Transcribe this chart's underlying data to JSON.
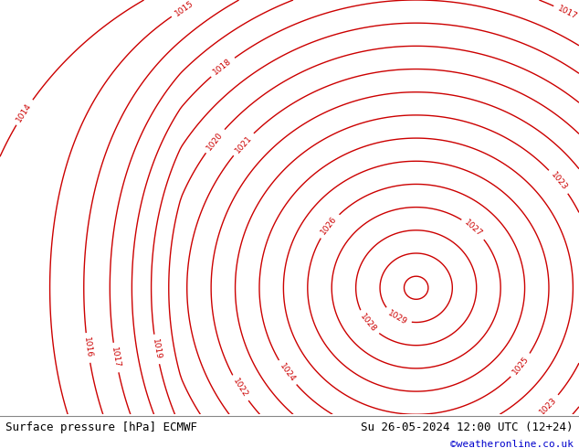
{
  "title_left": "Surface pressure [hPa] ECMWF",
  "title_right": "Su 26-05-2024 12:00 UTC (12+24)",
  "credit": "©weatheronline.co.uk",
  "land_color": "#c8f0c8",
  "sea_color": "#d2d2d2",
  "contour_color": "#cc0000",
  "black_front_color": "#000000",
  "blue_front_color": "#0000cc",
  "footer_bg": "#ffffff",
  "footer_text_color": "#000000",
  "credit_color": "#0000cc",
  "figsize": [
    6.34,
    4.9
  ],
  "dpi": 100,
  "font_size_footer": 9,
  "font_size_credit": 8,
  "lon_min": 0.0,
  "lon_max": 32.0,
  "lat_min": 54.0,
  "lat_max": 72.0
}
